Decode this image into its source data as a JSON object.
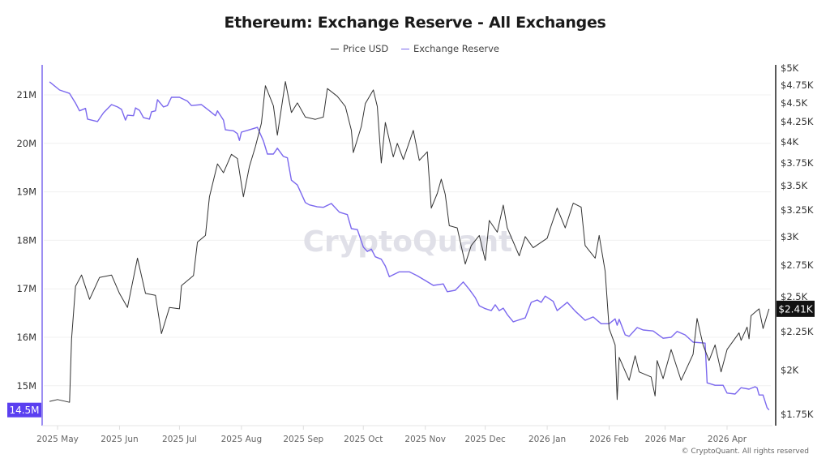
{
  "chart_data": {
    "type": "line",
    "title": "Ethereum: Exchange Reserve - All Exchanges",
    "legend_position": "top-center",
    "grid": true,
    "watermark": "CryptoQuant",
    "copyright": "© CryptoQuant. All rights reserved",
    "colors": {
      "price": "#333333",
      "reserve": "#7b68ee",
      "reserve_marker": "#5a3ff0",
      "price_marker": "#111111"
    },
    "x_ticks": [
      "2025 May",
      "2025 Jun",
      "2025 Jul",
      "2025 Aug",
      "2025 Sep",
      "2025 Oct",
      "2025 Nov",
      "2025 Dec",
      "2026 Jan",
      "2026 Feb",
      "2026 Mar",
      "2026 Apr"
    ],
    "left_axis": {
      "scale": "linear",
      "ylim": [
        14.3,
        21.5
      ],
      "ticks": [
        "21M",
        "20M",
        "19M",
        "18M",
        "17M",
        "16M",
        "15M"
      ],
      "tick_values": [
        21,
        20,
        19,
        18,
        17,
        16,
        15
      ]
    },
    "right_axis": {
      "scale": "log",
      "ylim": [
        1700,
        5000
      ],
      "ticks": [
        "$5K",
        "$4.75K",
        "$4.5K",
        "$4.25K",
        "$4K",
        "$3.75K",
        "$3.5K",
        "$3.25K",
        "$3K",
        "$2.75K",
        "$2.5K",
        "$2.25K",
        "$2K",
        "$1.75K"
      ],
      "tick_values": [
        5000,
        4750,
        4500,
        4250,
        4000,
        3750,
        3500,
        3250,
        3000,
        2750,
        2500,
        2250,
        2000,
        1750
      ]
    },
    "current_labels": {
      "reserve": "14.5M",
      "price": "$2.41K"
    },
    "series": [
      {
        "name": "Price USD",
        "axis": "right",
        "points": [
          [
            "2025-04-27",
            1820
          ],
          [
            "2025-05-01",
            1830
          ],
          [
            "2025-05-07",
            1815
          ],
          [
            "2025-05-08",
            2200
          ],
          [
            "2025-05-10",
            2580
          ],
          [
            "2025-05-13",
            2670
          ],
          [
            "2025-05-17",
            2480
          ],
          [
            "2025-05-22",
            2650
          ],
          [
            "2025-05-28",
            2670
          ],
          [
            "2025-06-01",
            2525
          ],
          [
            "2025-06-05",
            2420
          ],
          [
            "2025-06-10",
            2810
          ],
          [
            "2025-06-14",
            2525
          ],
          [
            "2025-06-19",
            2510
          ],
          [
            "2025-06-22",
            2235
          ],
          [
            "2025-06-26",
            2420
          ],
          [
            "2025-07-01",
            2410
          ],
          [
            "2025-07-02",
            2585
          ],
          [
            "2025-07-08",
            2665
          ],
          [
            "2025-07-10",
            2950
          ],
          [
            "2025-07-14",
            3010
          ],
          [
            "2025-07-16",
            3385
          ],
          [
            "2025-07-20",
            3740
          ],
          [
            "2025-07-23",
            3640
          ],
          [
            "2025-07-27",
            3850
          ],
          [
            "2025-07-30",
            3800
          ],
          [
            "2025-08-02",
            3385
          ],
          [
            "2025-08-05",
            3710
          ],
          [
            "2025-08-08",
            3940
          ],
          [
            "2025-08-11",
            4230
          ],
          [
            "2025-08-13",
            4740
          ],
          [
            "2025-08-17",
            4460
          ],
          [
            "2025-08-19",
            4080
          ],
          [
            "2025-08-23",
            4800
          ],
          [
            "2025-08-26",
            4370
          ],
          [
            "2025-08-29",
            4500
          ],
          [
            "2025-09-02",
            4310
          ],
          [
            "2025-09-07",
            4280
          ],
          [
            "2025-09-11",
            4310
          ],
          [
            "2025-09-13",
            4700
          ],
          [
            "2025-09-18",
            4590
          ],
          [
            "2025-09-22",
            4450
          ],
          [
            "2025-09-25",
            4140
          ],
          [
            "2025-09-26",
            3870
          ],
          [
            "2025-09-30",
            4190
          ],
          [
            "2025-10-02",
            4490
          ],
          [
            "2025-10-06",
            4680
          ],
          [
            "2025-10-08",
            4450
          ],
          [
            "2025-10-10",
            3750
          ],
          [
            "2025-10-12",
            4240
          ],
          [
            "2025-10-16",
            3820
          ],
          [
            "2025-10-18",
            3980
          ],
          [
            "2025-10-21",
            3790
          ],
          [
            "2025-10-26",
            4140
          ],
          [
            "2025-10-29",
            3780
          ],
          [
            "2025-11-02",
            3880
          ],
          [
            "2025-11-04",
            3270
          ],
          [
            "2025-11-07",
            3420
          ],
          [
            "2025-11-09",
            3570
          ],
          [
            "2025-11-11",
            3410
          ],
          [
            "2025-11-13",
            3100
          ],
          [
            "2025-11-17",
            3080
          ],
          [
            "2025-11-21",
            2760
          ],
          [
            "2025-11-24",
            2920
          ],
          [
            "2025-11-28",
            3010
          ],
          [
            "2025-12-01",
            2790
          ],
          [
            "2025-12-03",
            3150
          ],
          [
            "2025-12-07",
            3040
          ],
          [
            "2025-12-10",
            3300
          ],
          [
            "2025-12-12",
            3080
          ],
          [
            "2025-12-18",
            2830
          ],
          [
            "2025-12-21",
            3000
          ],
          [
            "2025-12-25",
            2900
          ],
          [
            "2026-01-01",
            2985
          ],
          [
            "2026-01-03",
            3100
          ],
          [
            "2026-01-06",
            3270
          ],
          [
            "2026-01-10",
            3080
          ],
          [
            "2026-01-14",
            3320
          ],
          [
            "2026-01-18",
            3280
          ],
          [
            "2026-01-20",
            2920
          ],
          [
            "2026-01-25",
            2810
          ],
          [
            "2026-01-27",
            3010
          ],
          [
            "2026-01-30",
            2700
          ],
          [
            "2026-02-01",
            2270
          ],
          [
            "2026-02-04",
            2160
          ],
          [
            "2026-02-05",
            1830
          ],
          [
            "2026-02-06",
            2080
          ],
          [
            "2026-02-11",
            1940
          ],
          [
            "2026-02-14",
            2090
          ],
          [
            "2026-02-16",
            1990
          ],
          [
            "2026-02-22",
            1960
          ],
          [
            "2026-02-24",
            1850
          ],
          [
            "2026-02-25",
            2060
          ],
          [
            "2026-02-28",
            1950
          ],
          [
            "2026-03-04",
            2130
          ],
          [
            "2026-03-09",
            1940
          ],
          [
            "2026-03-15",
            2100
          ],
          [
            "2026-03-17",
            2340
          ],
          [
            "2026-03-20",
            2160
          ],
          [
            "2026-03-23",
            2060
          ],
          [
            "2026-03-26",
            2160
          ],
          [
            "2026-03-29",
            1990
          ],
          [
            "2026-04-01",
            2130
          ],
          [
            "2026-04-07",
            2240
          ],
          [
            "2026-04-08",
            2190
          ],
          [
            "2026-04-11",
            2280
          ],
          [
            "2026-04-12",
            2200
          ],
          [
            "2026-04-13",
            2360
          ],
          [
            "2026-04-17",
            2410
          ],
          [
            "2026-04-19",
            2270
          ],
          [
            "2026-04-22",
            2410
          ]
        ]
      },
      {
        "name": "Exchange Reserve",
        "axis": "left",
        "points": [
          [
            "2025-04-27",
            21.27
          ],
          [
            "2025-05-02",
            21.1
          ],
          [
            "2025-05-07",
            21.03
          ],
          [
            "2025-05-10",
            20.83
          ],
          [
            "2025-05-12",
            20.67
          ],
          [
            "2025-05-15",
            20.72
          ],
          [
            "2025-05-16",
            20.5
          ],
          [
            "2025-05-21",
            20.45
          ],
          [
            "2025-05-24",
            20.63
          ],
          [
            "2025-05-28",
            20.8
          ],
          [
            "2025-05-31",
            20.75
          ],
          [
            "2025-06-02",
            20.7
          ],
          [
            "2025-06-04",
            20.48
          ],
          [
            "2025-06-05",
            20.58
          ],
          [
            "2025-06-08",
            20.57
          ],
          [
            "2025-06-09",
            20.73
          ],
          [
            "2025-06-11",
            20.68
          ],
          [
            "2025-06-13",
            20.53
          ],
          [
            "2025-06-16",
            20.5
          ],
          [
            "2025-06-17",
            20.65
          ],
          [
            "2025-06-19",
            20.67
          ],
          [
            "2025-06-20",
            20.9
          ],
          [
            "2025-06-23",
            20.75
          ],
          [
            "2025-06-25",
            20.78
          ],
          [
            "2025-06-27",
            20.95
          ],
          [
            "2025-07-01",
            20.95
          ],
          [
            "2025-07-05",
            20.87
          ],
          [
            "2025-07-07",
            20.78
          ],
          [
            "2025-07-12",
            20.8
          ],
          [
            "2025-07-16",
            20.67
          ],
          [
            "2025-07-19",
            20.57
          ],
          [
            "2025-07-20",
            20.67
          ],
          [
            "2025-07-23",
            20.48
          ],
          [
            "2025-07-24",
            20.28
          ],
          [
            "2025-07-28",
            20.26
          ],
          [
            "2025-07-30",
            20.2
          ],
          [
            "2025-07-31",
            20.06
          ],
          [
            "2025-08-01",
            20.23
          ],
          [
            "2025-08-05",
            20.28
          ],
          [
            "2025-08-09",
            20.33
          ],
          [
            "2025-08-12",
            20.05
          ],
          [
            "2025-08-14",
            19.78
          ],
          [
            "2025-08-17",
            19.78
          ],
          [
            "2025-08-19",
            19.9
          ],
          [
            "2025-08-22",
            19.73
          ],
          [
            "2025-08-24",
            19.7
          ],
          [
            "2025-08-26",
            19.24
          ],
          [
            "2025-08-29",
            19.14
          ],
          [
            "2025-09-02",
            18.78
          ],
          [
            "2025-09-04",
            18.73
          ],
          [
            "2025-09-08",
            18.69
          ],
          [
            "2025-09-11",
            18.68
          ],
          [
            "2025-09-15",
            18.76
          ],
          [
            "2025-09-19",
            18.58
          ],
          [
            "2025-09-23",
            18.53
          ],
          [
            "2025-09-25",
            18.24
          ],
          [
            "2025-09-28",
            18.22
          ],
          [
            "2025-10-01",
            17.86
          ],
          [
            "2025-10-03",
            17.77
          ],
          [
            "2025-10-05",
            17.82
          ],
          [
            "2025-10-07",
            17.66
          ],
          [
            "2025-10-10",
            17.61
          ],
          [
            "2025-10-12",
            17.47
          ],
          [
            "2025-10-14",
            17.25
          ],
          [
            "2025-10-19",
            17.35
          ],
          [
            "2025-10-24",
            17.35
          ],
          [
            "2025-10-28",
            17.27
          ],
          [
            "2025-11-01",
            17.17
          ],
          [
            "2025-11-05",
            17.07
          ],
          [
            "2025-11-10",
            17.1
          ],
          [
            "2025-11-12",
            16.94
          ],
          [
            "2025-11-16",
            16.97
          ],
          [
            "2025-11-20",
            17.14
          ],
          [
            "2025-11-23",
            16.99
          ],
          [
            "2025-11-26",
            16.82
          ],
          [
            "2025-11-28",
            16.65
          ],
          [
            "2025-12-01",
            16.59
          ],
          [
            "2025-12-04",
            16.55
          ],
          [
            "2025-12-06",
            16.67
          ],
          [
            "2025-12-08",
            16.55
          ],
          [
            "2025-12-10",
            16.6
          ],
          [
            "2025-12-12",
            16.47
          ],
          [
            "2025-12-15",
            16.32
          ],
          [
            "2025-12-21",
            16.4
          ],
          [
            "2025-12-24",
            16.72
          ],
          [
            "2025-12-27",
            16.77
          ],
          [
            "2025-12-29",
            16.72
          ],
          [
            "2025-12-31",
            16.85
          ],
          [
            "2026-01-04",
            16.74
          ],
          [
            "2026-01-06",
            16.55
          ],
          [
            "2026-01-11",
            16.72
          ],
          [
            "2026-01-15",
            16.54
          ],
          [
            "2026-01-20",
            16.35
          ],
          [
            "2026-01-24",
            16.42
          ],
          [
            "2026-01-28",
            16.28
          ],
          [
            "2026-02-01",
            16.28
          ],
          [
            "2026-02-04",
            16.38
          ],
          [
            "2026-02-05",
            16.25
          ],
          [
            "2026-02-06",
            16.37
          ],
          [
            "2026-02-09",
            16.05
          ],
          [
            "2026-02-11",
            16.02
          ],
          [
            "2026-02-15",
            16.2
          ],
          [
            "2026-02-18",
            16.15
          ],
          [
            "2026-02-23",
            16.13
          ],
          [
            "2026-02-28",
            15.98
          ],
          [
            "2026-03-04",
            16.0
          ],
          [
            "2026-03-07",
            16.12
          ],
          [
            "2026-03-11",
            16.05
          ],
          [
            "2026-03-15",
            15.9
          ],
          [
            "2026-03-21",
            15.88
          ],
          [
            "2026-03-22",
            15.06
          ],
          [
            "2026-03-26",
            15.01
          ],
          [
            "2026-03-30",
            15.01
          ],
          [
            "2026-04-01",
            14.85
          ],
          [
            "2026-04-05",
            14.83
          ],
          [
            "2026-04-08",
            14.96
          ],
          [
            "2026-04-12",
            14.93
          ],
          [
            "2026-04-15",
            14.98
          ],
          [
            "2026-04-16",
            14.96
          ],
          [
            "2026-04-17",
            14.81
          ],
          [
            "2026-04-19",
            14.81
          ],
          [
            "2026-04-21",
            14.55
          ],
          [
            "2026-04-22",
            14.5
          ]
        ]
      }
    ]
  }
}
